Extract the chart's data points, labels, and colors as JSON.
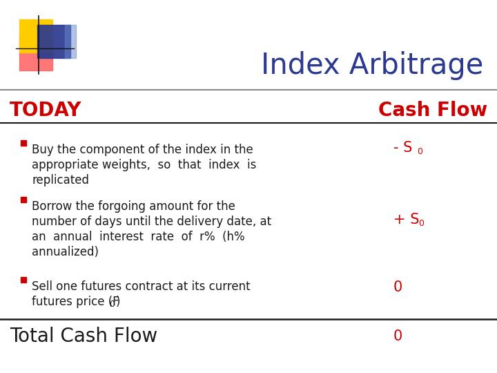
{
  "title": "Index Arbitrage",
  "title_color": "#2B3990",
  "title_fontsize": 30,
  "bg_color": "#FFFFFF",
  "today_label": "TODAY",
  "today_color": "#CC0000",
  "today_fontsize": 20,
  "cashflow_label": "Cash Flow",
  "cashflow_color": "#CC0000",
  "cashflow_fontsize": 20,
  "total_label": "Total Cash Flow",
  "total_color": "#1A1A1A",
  "total_fontsize": 20,
  "total_value": "0",
  "total_value_color": "#CC0000",
  "bullet_color": "#CC0000",
  "text_color": "#1A1A1A",
  "body_fontsize": 12,
  "logo_colors": {
    "yellow": "#FFCC00",
    "red_pink": "#FF6060",
    "blue": "#2B3990",
    "blue_light": "#6688CC"
  },
  "header_line_color": "#888888",
  "divider_line_color": "#1A1A1A",
  "cf_fontsize": 15
}
